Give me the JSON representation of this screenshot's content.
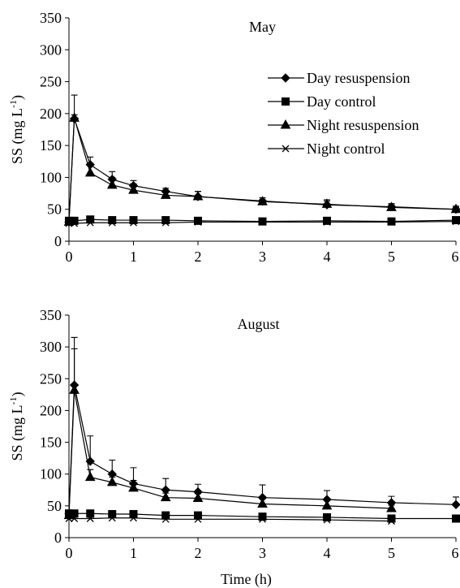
{
  "chart_data": [
    {
      "type": "line",
      "title": "May",
      "ylabel": [
        "SS (mg L",
        "-1",
        ")"
      ],
      "x": [
        0,
        0.083,
        0.33,
        0.67,
        1,
        1.5,
        2,
        3,
        4,
        5,
        6
      ],
      "xlim": [
        0,
        6
      ],
      "xticks": [
        0,
        1,
        2,
        3,
        4,
        5,
        6
      ],
      "ylim": [
        0,
        350
      ],
      "yticks": [
        0,
        50,
        100,
        150,
        200,
        250,
        300,
        350
      ],
      "legend": "upper right",
      "series": [
        {
          "name": "Day resuspension",
          "color": "#000000",
          "marker": "diamond",
          "values": [
            30,
            192,
            120,
            97,
            87,
            78,
            70,
            63,
            57,
            54,
            50
          ],
          "errors": [
            5,
            37,
            12,
            12,
            8,
            5,
            8,
            5,
            8,
            5,
            5
          ]
        },
        {
          "name": "Day control",
          "color": "#000000",
          "marker": "square",
          "values": [
            32,
            32,
            34,
            33,
            33,
            33,
            32,
            31,
            32,
            31,
            33
          ],
          "errors": [
            3,
            3,
            3,
            3,
            3,
            3,
            3,
            2,
            3,
            2,
            5
          ]
        },
        {
          "name": "Night resuspension",
          "color": "#000000",
          "marker": "triangle",
          "values": [
            30,
            193,
            107,
            88,
            80,
            72,
            70,
            62,
            58,
            53,
            50
          ],
          "errors": [
            5,
            5,
            15,
            12,
            10,
            8,
            8,
            3,
            5,
            4,
            3
          ]
        },
        {
          "name": "Night control",
          "color": "#000000",
          "marker": "x",
          "values": [
            28,
            28,
            29,
            29,
            29,
            29,
            30,
            30,
            30,
            30,
            31
          ],
          "errors": [
            2,
            2,
            2,
            2,
            2,
            2,
            2,
            2,
            2,
            2,
            2
          ]
        }
      ]
    },
    {
      "type": "line",
      "title": "August",
      "ylabel": [
        "SS (mg L",
        "-1",
        ")"
      ],
      "xlabel": "Time (h)",
      "x": [
        0,
        0.083,
        0.33,
        0.67,
        1,
        1.5,
        2,
        3,
        4,
        5,
        6
      ],
      "xlim": [
        0,
        6
      ],
      "xticks": [
        0,
        1,
        2,
        3,
        4,
        5,
        6
      ],
      "ylim": [
        0,
        350
      ],
      "yticks": [
        0,
        50,
        100,
        150,
        200,
        250,
        300,
        350
      ],
      "series": [
        {
          "color": "#000000",
          "marker": "diamond",
          "values": [
            38,
            240,
            120,
            100,
            85,
            75,
            72,
            63,
            60,
            55,
            52
          ],
          "errors": [
            5,
            75,
            40,
            22,
            25,
            18,
            12,
            20,
            14,
            10,
            12
          ]
        },
        {
          "color": "#000000",
          "marker": "square",
          "values": [
            38,
            38,
            38,
            37,
            37,
            35,
            35,
            33,
            32,
            30,
            30
          ],
          "errors": [
            5,
            5,
            5,
            4,
            4,
            4,
            4,
            3,
            3,
            3,
            4
          ]
        },
        {
          "color": "#000000",
          "marker": "triangle",
          "values": [
            35,
            232,
            95,
            87,
            78,
            63,
            62,
            53,
            50,
            46,
            null
          ],
          "errors": [
            5,
            65,
            12,
            8,
            12,
            7,
            7,
            8,
            8,
            5,
            null
          ]
        },
        {
          "color": "#000000",
          "marker": "x",
          "values": [
            30,
            30,
            30,
            31,
            31,
            29,
            29,
            29,
            28,
            26,
            null
          ],
          "errors": [
            2,
            2,
            2,
            2,
            2,
            2,
            2,
            2,
            2,
            2,
            null
          ]
        }
      ]
    }
  ]
}
